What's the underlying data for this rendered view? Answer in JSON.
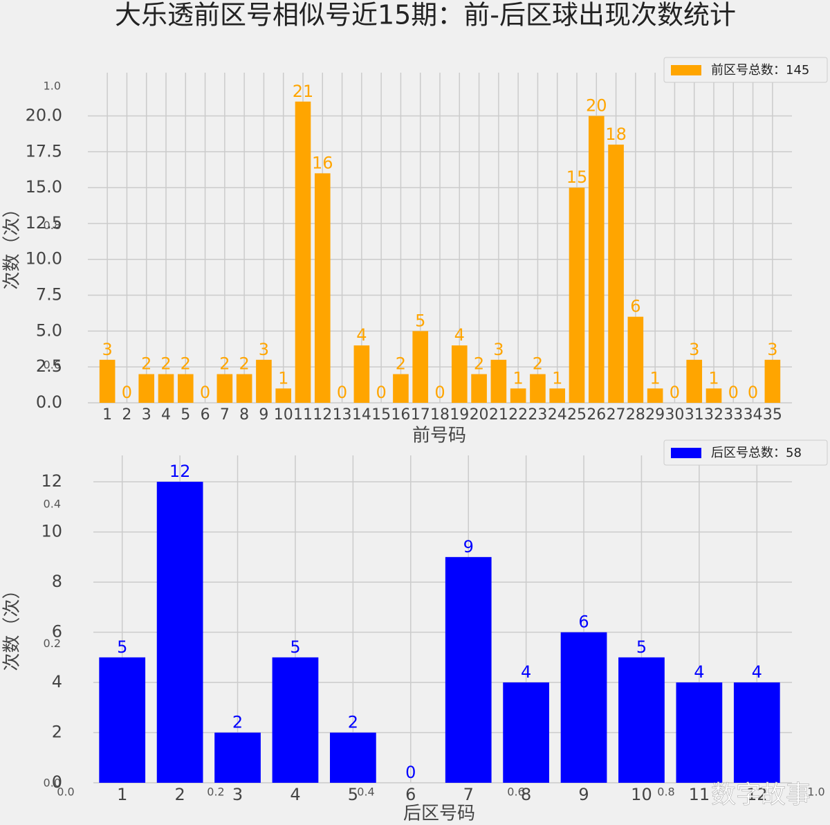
{
  "chart_data": [
    {
      "type": "bar",
      "title": "大乐透前区号相似号近15期：前-后区球出现次数统计",
      "xlabel": "前号码",
      "ylabel": "次数（次）",
      "categories": [
        "1",
        "2",
        "3",
        "4",
        "5",
        "6",
        "7",
        "8",
        "9",
        "10",
        "11",
        "12",
        "13",
        "14",
        "15",
        "16",
        "17",
        "18",
        "19",
        "20",
        "21",
        "22",
        "23",
        "24",
        "25",
        "26",
        "27",
        "28",
        "29",
        "30",
        "31",
        "32",
        "33",
        "34",
        "35"
      ],
      "series": [
        {
          "name": "前区号总数：145",
          "color": "#ffa500",
          "values": [
            3,
            0,
            2,
            2,
            2,
            0,
            2,
            2,
            3,
            1,
            21,
            16,
            0,
            4,
            0,
            2,
            5,
            0,
            4,
            2,
            3,
            1,
            2,
            1,
            15,
            20,
            18,
            6,
            1,
            0,
            3,
            1,
            0,
            0,
            3
          ]
        }
      ],
      "ylim": [
        0,
        22.05
      ],
      "yticks": [
        {
          "value": 0,
          "label": "0.0"
        },
        2.5,
        {
          "value": 5,
          "label": "5.0"
        },
        7.5,
        {
          "value": 10,
          "label": "10.0"
        },
        12.5,
        {
          "value": 15,
          "label": "15.0"
        },
        17.5,
        {
          "value": 20,
          "label": "20.0"
        }
      ],
      "grid": true,
      "legend": "upper right"
    },
    {
      "type": "bar",
      "xlabel": "后区号码",
      "ylabel": "次数（次）",
      "categories": [
        "1",
        "2",
        "3",
        "4",
        "5",
        "6",
        "7",
        "8",
        "9",
        "10",
        "11",
        "12"
      ],
      "series": [
        {
          "name": "后区号总数：58",
          "color": "#0000ff",
          "values": [
            5,
            12,
            2,
            5,
            2,
            0,
            9,
            4,
            6,
            5,
            4,
            4
          ]
        }
      ],
      "ylim": [
        0,
        12.5
      ],
      "yticks": [
        0,
        2,
        4,
        6,
        8,
        10,
        12
      ],
      "grid": true,
      "legend": "upper right"
    }
  ],
  "background_axis": {
    "xlim": [
      0,
      1
    ],
    "ylim": [
      0,
      1
    ],
    "xticks": [
      {
        "value": 0,
        "label": "0.0"
      },
      {
        "value": 0.2,
        "label": "0.2"
      },
      {
        "value": 0.4,
        "label": "0.4"
      },
      {
        "value": 0.6,
        "label": "0.6"
      },
      {
        "value": 0.8,
        "label": "0.8"
      },
      {
        "value": 1,
        "label": "1.0"
      }
    ],
    "yticks": [
      {
        "value": 0,
        "label": "0.0"
      },
      {
        "value": 0.2,
        "label": "0.2"
      },
      {
        "value": 0.4,
        "label": "0.4"
      },
      {
        "value": 0.6,
        "label": "0.6"
      },
      {
        "value": 0.8,
        "label": "0.8"
      },
      {
        "value": 1,
        "label": "1.0"
      }
    ]
  },
  "watermark": "数字故事"
}
